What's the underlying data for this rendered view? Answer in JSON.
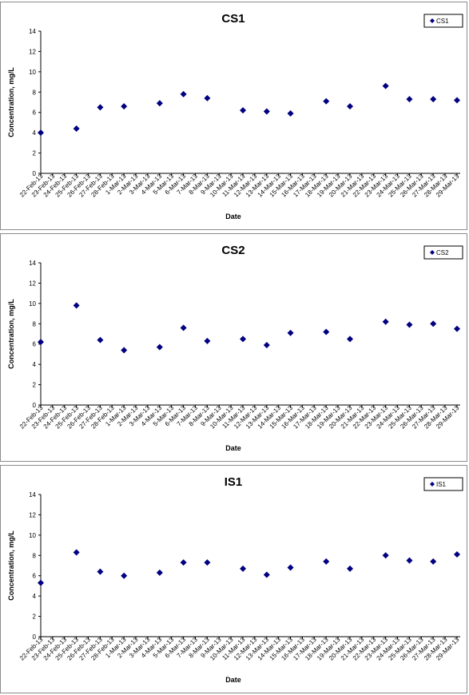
{
  "chart_data": [
    {
      "type": "scatter",
      "title": "CS1",
      "xlabel": "Date",
      "ylabel": "Concentration, mg/L",
      "ylim": [
        0,
        14
      ],
      "yticks": [
        0,
        2,
        4,
        6,
        8,
        10,
        12,
        14
      ],
      "categories": [
        "22-Feb-13",
        "23-Feb-13",
        "24-Feb-13",
        "25-Feb-13",
        "26-Feb-13",
        "27-Feb-13",
        "28-Feb-13",
        "1-Mar-13",
        "2-Mar-13",
        "3-Mar-13",
        "4-Mar-13",
        "5-Mar-13",
        "6-Mar-13",
        "7-Mar-13",
        "8-Mar-13",
        "9-Mar-13",
        "10-Mar-13",
        "11-Mar-13",
        "12-Mar-13",
        "13-Mar-13",
        "14-Mar-13",
        "15-Mar-13",
        "16-Mar-13",
        "17-Mar-13",
        "18-Mar-13",
        "19-Mar-13",
        "20-Mar-13",
        "21-Mar-13",
        "22-Mar-13",
        "23-Mar-13",
        "24-Mar-13",
        "25-Mar-13",
        "26-Mar-13",
        "27-Mar-13",
        "28-Mar-13",
        "29-Mar-13"
      ],
      "grid": false,
      "legend_position": "top-right",
      "marker_color": "#000080",
      "series": [
        {
          "name": "CS1",
          "points": [
            {
              "x": "22-Feb-13",
              "y": 4.0
            },
            {
              "x": "25-Feb-13",
              "y": 4.4
            },
            {
              "x": "27-Feb-13",
              "y": 6.5
            },
            {
              "x": "1-Mar-13",
              "y": 6.6
            },
            {
              "x": "4-Mar-13",
              "y": 6.9
            },
            {
              "x": "6-Mar-13",
              "y": 7.8
            },
            {
              "x": "8-Mar-13",
              "y": 7.4
            },
            {
              "x": "11-Mar-13",
              "y": 6.2
            },
            {
              "x": "13-Mar-13",
              "y": 6.1
            },
            {
              "x": "15-Mar-13",
              "y": 5.9
            },
            {
              "x": "18-Mar-13",
              "y": 7.1
            },
            {
              "x": "20-Mar-13",
              "y": 6.6
            },
            {
              "x": "23-Mar-13",
              "y": 8.6
            },
            {
              "x": "25-Mar-13",
              "y": 7.3
            },
            {
              "x": "27-Mar-13",
              "y": 7.3
            },
            {
              "x": "29-Mar-13",
              "y": 7.2
            }
          ]
        }
      ]
    },
    {
      "type": "scatter",
      "title": "CS2",
      "xlabel": "Date",
      "ylabel": "Concentration, mg/L",
      "ylim": [
        0,
        14
      ],
      "yticks": [
        0,
        2,
        4,
        6,
        8,
        10,
        12,
        14
      ],
      "categories": [
        "22-Feb-13",
        "23-Feb-13",
        "24-Feb-13",
        "25-Feb-13",
        "26-Feb-13",
        "27-Feb-13",
        "28-Feb-13",
        "1-Mar-13",
        "2-Mar-13",
        "3-Mar-13",
        "4-Mar-13",
        "5-Mar-13",
        "6-Mar-13",
        "7-Mar-13",
        "8-Mar-13",
        "9-Mar-13",
        "10-Mar-13",
        "11-Mar-13",
        "12-Mar-13",
        "13-Mar-13",
        "14-Mar-13",
        "15-Mar-13",
        "16-Mar-13",
        "17-Mar-13",
        "18-Mar-13",
        "19-Mar-13",
        "20-Mar-13",
        "21-Mar-13",
        "22-Mar-13",
        "23-Mar-13",
        "24-Mar-13",
        "25-Mar-13",
        "26-Mar-13",
        "27-Mar-13",
        "28-Mar-13",
        "29-Mar-13"
      ],
      "grid": false,
      "legend_position": "top-right",
      "marker_color": "#000080",
      "series": [
        {
          "name": "CS2",
          "points": [
            {
              "x": "22-Feb-13",
              "y": 6.2
            },
            {
              "x": "25-Feb-13",
              "y": 9.8
            },
            {
              "x": "27-Feb-13",
              "y": 6.4
            },
            {
              "x": "1-Mar-13",
              "y": 5.4
            },
            {
              "x": "4-Mar-13",
              "y": 5.7
            },
            {
              "x": "6-Mar-13",
              "y": 7.6
            },
            {
              "x": "8-Mar-13",
              "y": 6.3
            },
            {
              "x": "11-Mar-13",
              "y": 6.5
            },
            {
              "x": "13-Mar-13",
              "y": 5.9
            },
            {
              "x": "15-Mar-13",
              "y": 7.1
            },
            {
              "x": "18-Mar-13",
              "y": 7.2
            },
            {
              "x": "20-Mar-13",
              "y": 6.5
            },
            {
              "x": "23-Mar-13",
              "y": 8.2
            },
            {
              "x": "25-Mar-13",
              "y": 7.9
            },
            {
              "x": "27-Mar-13",
              "y": 8.0
            },
            {
              "x": "29-Mar-13",
              "y": 7.5
            }
          ]
        }
      ]
    },
    {
      "type": "scatter",
      "title": "IS1",
      "xlabel": "Date",
      "ylabel": "Concentration, mg/L",
      "ylim": [
        0,
        14
      ],
      "yticks": [
        0,
        2,
        4,
        6,
        8,
        10,
        12,
        14
      ],
      "categories": [
        "22-Feb-13",
        "23-Feb-13",
        "24-Feb-13",
        "25-Feb-13",
        "26-Feb-13",
        "27-Feb-13",
        "28-Feb-13",
        "1-Mar-13",
        "2-Mar-13",
        "3-Mar-13",
        "4-Mar-13",
        "5-Mar-13",
        "6-Mar-13",
        "7-Mar-13",
        "8-Mar-13",
        "9-Mar-13",
        "10-Mar-13",
        "11-Mar-13",
        "12-Mar-13",
        "13-Mar-13",
        "14-Mar-13",
        "15-Mar-13",
        "16-Mar-13",
        "17-Mar-13",
        "18-Mar-13",
        "19-Mar-13",
        "20-Mar-13",
        "21-Mar-13",
        "22-Mar-13",
        "23-Mar-13",
        "24-Mar-13",
        "25-Mar-13",
        "26-Mar-13",
        "27-Mar-13",
        "28-Mar-13",
        "29-Mar-13"
      ],
      "grid": false,
      "legend_position": "top-right",
      "marker_color": "#000080",
      "series": [
        {
          "name": "IS1",
          "points": [
            {
              "x": "22-Feb-13",
              "y": 5.3
            },
            {
              "x": "25-Feb-13",
              "y": 8.3
            },
            {
              "x": "27-Feb-13",
              "y": 6.4
            },
            {
              "x": "1-Mar-13",
              "y": 6.0
            },
            {
              "x": "4-Mar-13",
              "y": 6.3
            },
            {
              "x": "6-Mar-13",
              "y": 7.3
            },
            {
              "x": "8-Mar-13",
              "y": 7.3
            },
            {
              "x": "11-Mar-13",
              "y": 6.7
            },
            {
              "x": "13-Mar-13",
              "y": 6.1
            },
            {
              "x": "15-Mar-13",
              "y": 6.8
            },
            {
              "x": "18-Mar-13",
              "y": 7.4
            },
            {
              "x": "20-Mar-13",
              "y": 6.7
            },
            {
              "x": "23-Mar-13",
              "y": 8.0
            },
            {
              "x": "25-Mar-13",
              "y": 7.5
            },
            {
              "x": "27-Mar-13",
              "y": 7.4
            },
            {
              "x": "29-Mar-13",
              "y": 8.1
            }
          ]
        }
      ]
    }
  ]
}
